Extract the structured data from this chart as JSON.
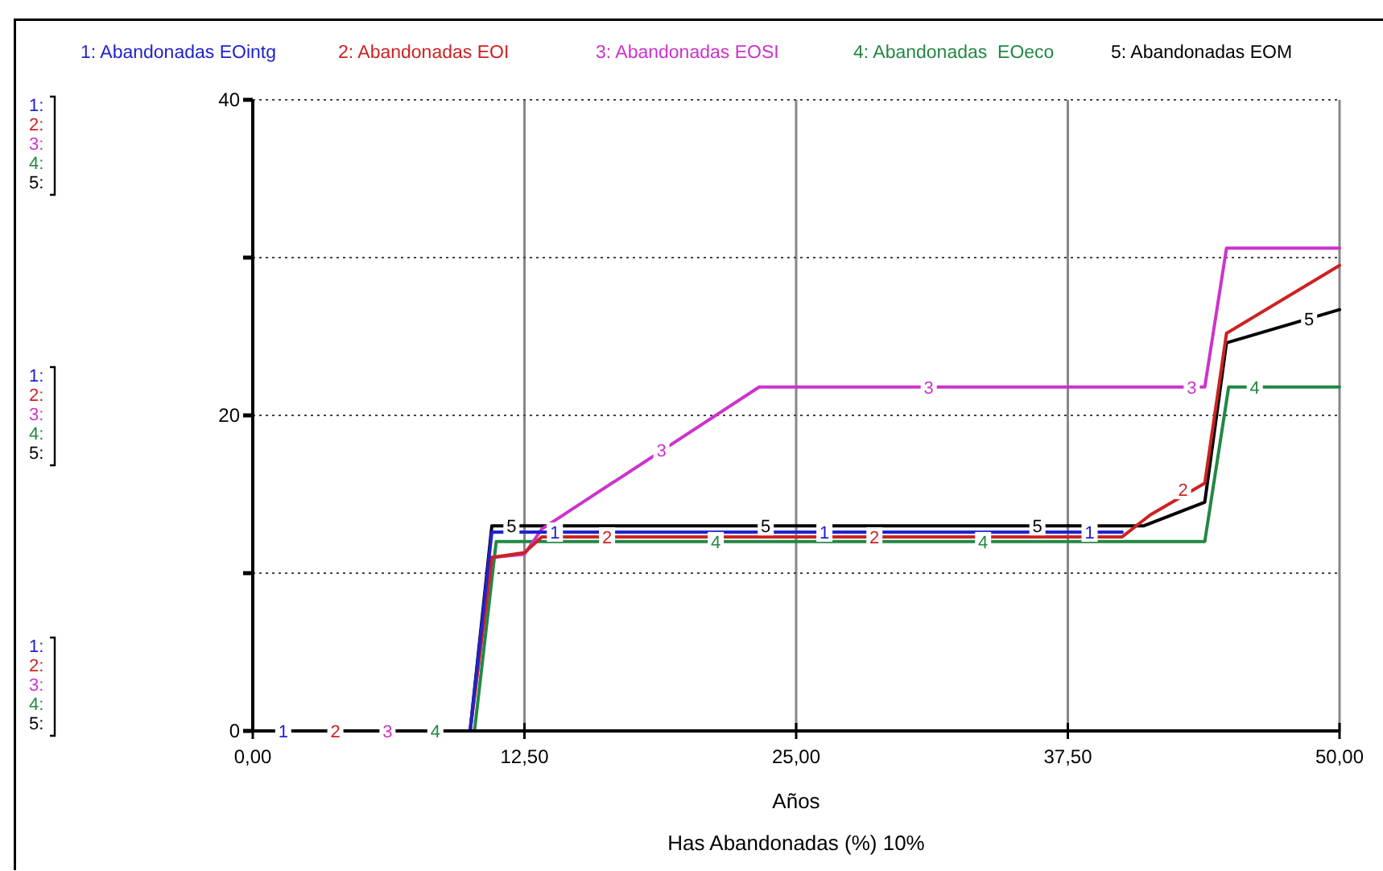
{
  "chart_data": {
    "type": "line",
    "xlabel": "Años",
    "annotations": [
      "Has Abandonadas (%) 10%",
      "1:",
      "2:",
      "3:",
      "4:",
      "5:",
      "1:",
      "2:",
      "3:",
      "4:",
      "5:",
      "1:",
      "2:",
      "3:",
      "4:",
      "5:",
      {
        "text": "1",
        "x": 1.4,
        "y": 0
      },
      {
        "text": "2",
        "x": 3.8,
        "y": 0
      },
      {
        "text": "3",
        "x": 6.2,
        "y": 0
      },
      {
        "text": "4",
        "x": 8.4,
        "y": 0
      },
      {
        "text": "5",
        "x": 11.9,
        "y": 13
      },
      {
        "text": "1",
        "x": 13.9,
        "y": 12.6
      },
      {
        "text": "2",
        "x": 16.3,
        "y": 12.3
      },
      {
        "text": "3",
        "x": 18.8,
        "y": 17.8
      },
      {
        "text": "4",
        "x": 21.3,
        "y": 12
      },
      {
        "text": "5",
        "x": 23.6,
        "y": 13
      },
      {
        "text": "1",
        "x": 26.3,
        "y": 12.6
      },
      {
        "text": "2",
        "x": 28.6,
        "y": 12.3
      },
      {
        "text": "3",
        "x": 31.1,
        "y": 21.8
      },
      {
        "text": "4",
        "x": 33.6,
        "y": 12
      },
      {
        "text": "5",
        "x": 36.1,
        "y": 13
      },
      {
        "text": "1",
        "x": 38.5,
        "y": 12.6
      },
      {
        "text": "2",
        "x": 42.8,
        "y": 15.3
      },
      {
        "text": "3",
        "x": 43.2,
        "y": 21.8
      },
      {
        "text": "4",
        "x": 46.1,
        "y": 21.8
      },
      {
        "text": "5",
        "x": 48.6,
        "y": 26.1
      }
    ],
    "xlim": [
      0,
      50
    ],
    "xticks": [
      {
        "value": 0,
        "label": "0,00"
      },
      {
        "value": 12.5,
        "label": "12,50"
      },
      {
        "value": 25,
        "label": "25,00"
      },
      {
        "value": 37.5,
        "label": "37,50"
      },
      {
        "value": 50,
        "label": "50,00"
      }
    ],
    "ylim": [
      0,
      40
    ],
    "yticks": [
      0,
      {
        "value": 10,
        "label": null
      },
      20,
      {
        "value": 30,
        "label": null
      },
      40
    ],
    "grid": true,
    "legend": "top",
    "marker": "none",
    "line_style": "solid",
    "series": [
      {
        "name": "1: Abandonadas EOintg",
        "color": "#2222cc",
        "x": [
          0,
          10,
          11,
          40
        ],
        "values": [
          0,
          0,
          12.6,
          12.6
        ]
      },
      {
        "name": "2: Abandonadas EOI",
        "color": "#cc2222",
        "x": [
          0,
          10,
          11,
          12.5,
          13.3,
          40,
          41.3,
          43.8,
          44.8,
          50
        ],
        "values": [
          0,
          0,
          11,
          11.3,
          12.3,
          12.3,
          13.7,
          15.7,
          25.2,
          29.5
        ]
      },
      {
        "name": "3: Abandonadas EOSI",
        "color": "#cc33cc",
        "x": [
          0,
          10,
          11,
          12.5,
          13.3,
          23.3,
          43.8,
          44.8,
          50
        ],
        "values": [
          0,
          0,
          11,
          11.2,
          12.8,
          21.8,
          21.8,
          30.6,
          30.6
        ]
      },
      {
        "name": "4: Abandonadas  EOeco",
        "color": "#228844",
        "x": [
          0,
          10.2,
          11.2,
          43.8,
          44.9,
          50
        ],
        "values": [
          0,
          0,
          12,
          12,
          21.8,
          21.8
        ]
      },
      {
        "name": "5: Abandonadas EOM",
        "color": "#000000",
        "x": [
          0,
          10,
          11,
          41,
          43.8,
          44.8,
          50
        ],
        "values": [
          0,
          0,
          13,
          13,
          14.5,
          24.6,
          26.7
        ]
      }
    ]
  }
}
